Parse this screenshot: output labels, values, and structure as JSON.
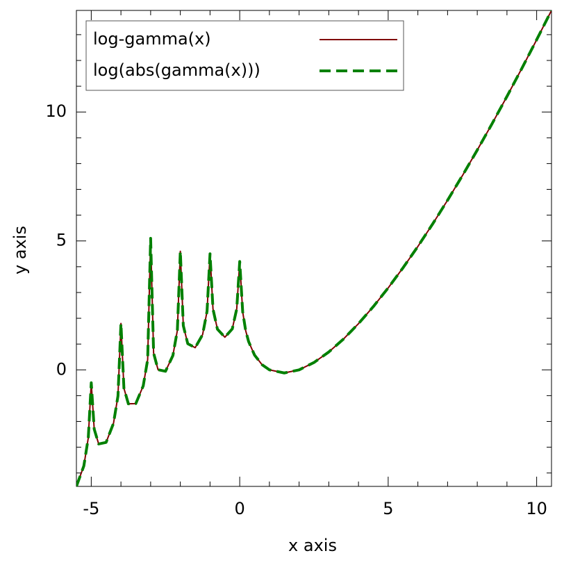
{
  "chart_data": {
    "type": "line",
    "xlabel": "x axis",
    "ylabel": "y axis",
    "x": [
      -5.5,
      -5.25,
      -5.1,
      -5.0,
      -4.9,
      -4.75,
      -4.5,
      -4.25,
      -4.1,
      -4.0,
      -3.9,
      -3.75,
      -3.5,
      -3.25,
      -3.1,
      -3.0,
      -2.9,
      -2.75,
      -2.5,
      -2.25,
      -2.1,
      -2.0,
      -1.9,
      -1.75,
      -1.5,
      -1.25,
      -1.1,
      -1.0,
      -0.9,
      -0.75,
      -0.5,
      -0.25,
      -0.1,
      0.0,
      0.1,
      0.2,
      0.3,
      0.5,
      0.75,
      1,
      1.5,
      2,
      2.5,
      3,
      3.5,
      4,
      4.5,
      5,
      5.5,
      6,
      6.5,
      7,
      7.5,
      8,
      8.5,
      9,
      9.5,
      10,
      10.5
    ],
    "series": [
      {
        "name": "log-gamma(x)",
        "color": "#800000",
        "width": 2,
        "dash": false,
        "values": [
          -4.518,
          -3.728,
          -2.64,
          -0.5,
          -2.299,
          -2.875,
          -2.813,
          -2.07,
          -1.011,
          1.8,
          -0.71,
          -1.317,
          -1.309,
          -0.623,
          0.4,
          5.1,
          0.652,
          0.005,
          -0.056,
          0.556,
          1.532,
          4.6,
          1.716,
          1.016,
          0.86,
          1.366,
          2.274,
          4.5,
          2.358,
          1.576,
          1.266,
          1.589,
          2.369,
          4.2,
          2.253,
          1.524,
          1.096,
          0.572,
          0.203,
          0,
          -0.121,
          0,
          0.285,
          0.693,
          1.201,
          1.792,
          2.454,
          3.178,
          3.958,
          4.787,
          5.663,
          6.579,
          7.534,
          8.525,
          9.549,
          10.605,
          11.689,
          12.802,
          13.941
        ]
      },
      {
        "name": "log(abs(gamma(x)))",
        "color": "#008000",
        "width": 4,
        "dash": true,
        "values": [
          -4.518,
          -3.728,
          -2.64,
          -0.5,
          -2.299,
          -2.875,
          -2.813,
          -2.07,
          -1.011,
          1.8,
          -0.71,
          -1.317,
          -1.309,
          -0.623,
          0.4,
          5.1,
          0.652,
          0.005,
          -0.056,
          0.556,
          1.532,
          4.6,
          1.716,
          1.016,
          0.86,
          1.366,
          2.274,
          4.5,
          2.358,
          1.576,
          1.266,
          1.589,
          2.369,
          4.2,
          2.253,
          1.524,
          1.096,
          0.572,
          0.203,
          0,
          -0.121,
          0,
          0.285,
          0.693,
          1.201,
          1.792,
          2.454,
          3.178,
          3.958,
          4.787,
          5.663,
          6.579,
          7.534,
          8.525,
          9.549,
          10.605,
          11.689,
          12.802,
          13.941
        ]
      }
    ],
    "xlim": [
      -5.5,
      10.5
    ],
    "ylim": [
      -4.52,
      13.94
    ],
    "xticks": [
      -5,
      0,
      5,
      10
    ],
    "yticks": [
      0,
      5,
      10
    ],
    "xminorticks": [
      -4,
      -3,
      -2,
      -1,
      1,
      2,
      3,
      4,
      6,
      7,
      8,
      9
    ],
    "yminorticks": [
      -4,
      -3,
      -2,
      -1,
      1,
      2,
      3,
      4,
      6,
      7,
      8,
      9,
      11,
      12,
      13
    ],
    "legend": "upper left",
    "grid": false
  }
}
